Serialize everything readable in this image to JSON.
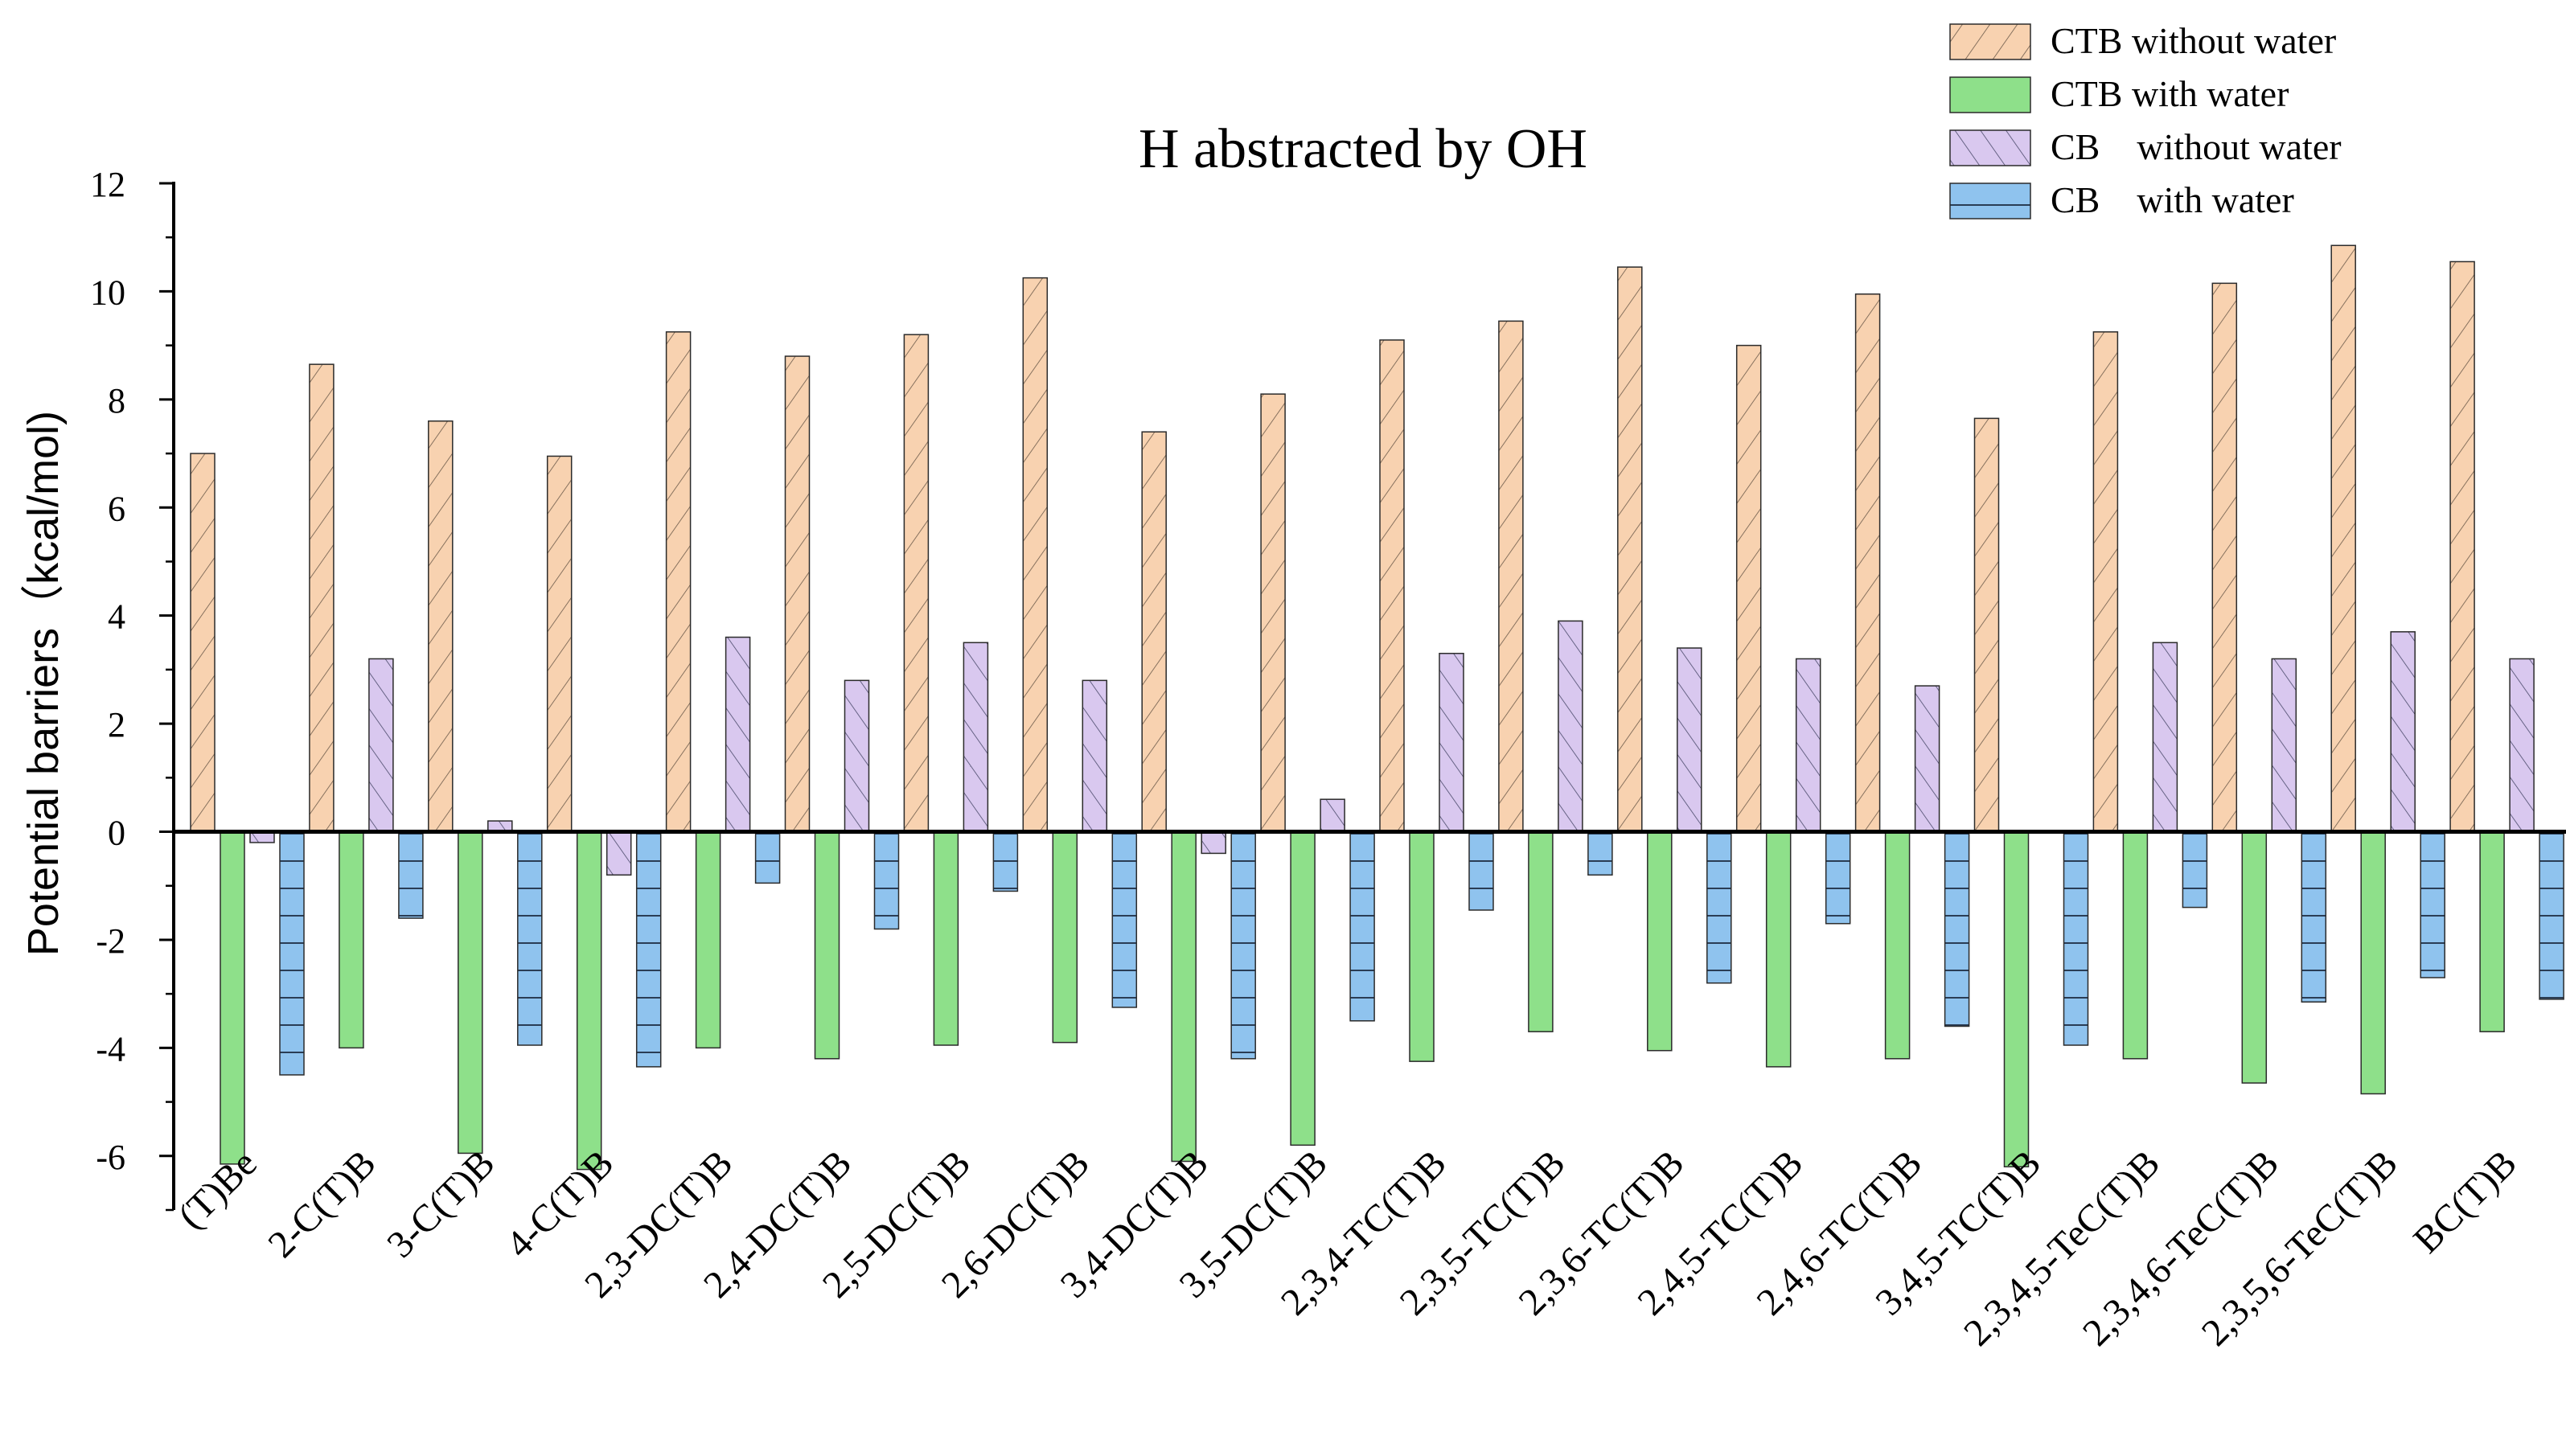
{
  "chart_data": {
    "type": "bar",
    "title": "H abstracted by OH",
    "xlabel": "",
    "ylabel": "Potential barriers（kcal/mol)",
    "ylim": [
      -7,
      12
    ],
    "yticks": [
      -6,
      -4,
      -2,
      0,
      2,
      4,
      6,
      8,
      10,
      12
    ],
    "legend_position": "top-right",
    "categories": [
      "(T)Be",
      "2-C(T)B",
      "3-C(T)B",
      "4-C(T)B",
      "2,3-DC(T)B",
      "2,4-DC(T)B",
      "2,5-DC(T)B",
      "2,6-DC(T)B",
      "3,4-DC(T)B",
      "3,5-DC(T)B",
      "2,3,4-TC(T)B",
      "2,3,5-TC(T)B",
      "2,3,6-TC(T)B",
      "2,4,5-TC(T)B",
      "2,4,6-TC(T)B",
      "3,4,5-TC(T)B",
      "2,3,4,5-TeC(T)B",
      "2,3,4,6-TeC(T)B",
      "2,3,5,6-TeC(T)B",
      "BC(T)B"
    ],
    "series": [
      {
        "name": "CTB without water",
        "color": "#f8d2b0",
        "pattern": "diag-fwd",
        "values": [
          7.0,
          8.65,
          7.6,
          6.95,
          9.25,
          8.8,
          9.2,
          10.25,
          7.4,
          8.1,
          9.1,
          9.45,
          10.45,
          9.0,
          9.95,
          7.65,
          9.25,
          10.15,
          10.85,
          10.55
        ]
      },
      {
        "name": "CTB with water",
        "color": "#8ee08a",
        "pattern": "solid",
        "values": [
          -6.15,
          -4.0,
          -5.95,
          -6.25,
          -4.0,
          -4.2,
          -3.95,
          -3.9,
          -6.1,
          -5.8,
          -4.25,
          -3.7,
          -4.05,
          -4.35,
          -4.2,
          -6.2,
          -4.2,
          -4.65,
          -4.85,
          -3.7
        ]
      },
      {
        "name": "CB    without water",
        "color": "#d9c8ef",
        "pattern": "diag-back",
        "values": [
          -0.2,
          3.2,
          0.2,
          -0.8,
          3.6,
          2.8,
          3.5,
          2.8,
          -0.4,
          0.6,
          3.3,
          3.9,
          3.4,
          3.2,
          2.7,
          null,
          3.5,
          3.2,
          3.7,
          3.2
        ]
      },
      {
        "name": "CB    with water",
        "color": "#8fc3ee",
        "pattern": "horizontal",
        "values": [
          -4.5,
          -1.6,
          -3.95,
          -4.35,
          -0.95,
          -1.8,
          -1.1,
          -3.25,
          -4.2,
          -3.5,
          -1.45,
          -0.8,
          -2.8,
          -1.7,
          -3.6,
          -3.95,
          -1.4,
          -3.15,
          -2.7,
          -3.1
        ]
      }
    ]
  }
}
